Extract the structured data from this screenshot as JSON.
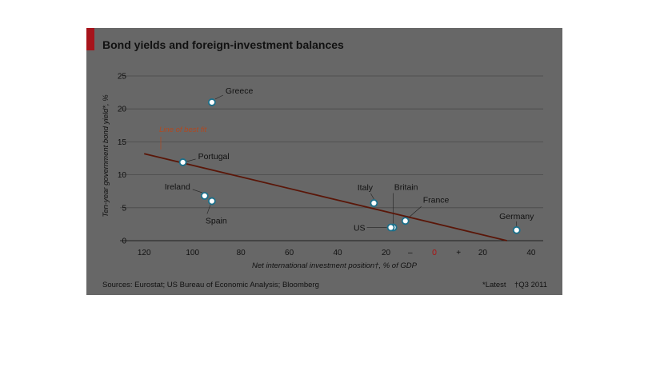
{
  "chart": {
    "title": "Bond yields and foreign-investment balances",
    "sources": "Sources: Eurostat; US Bureau of Economic Analysis; Bloomberg",
    "footnote_latest": "*Latest",
    "footnote_q3": "†Q3 2011",
    "fit_label": "Line of best fit",
    "sign_minus": "–",
    "sign_zero": "0",
    "sign_plus": "+"
  },
  "chart_data": {
    "type": "scatter",
    "title": "Bond yields and foreign-investment balances",
    "xlabel": "Net international investment position†, % of GDP",
    "ylabel": "Ten-year government bond yield*, %",
    "x_direction": "reversed",
    "xlim": [
      -130,
      45
    ],
    "ylim": [
      0,
      25
    ],
    "x_ticks": [
      -120,
      -100,
      -80,
      -60,
      -40,
      -20,
      0,
      20,
      40
    ],
    "x_tick_labels": [
      "120",
      "100",
      "80",
      "60",
      "40",
      "20",
      "0",
      "20",
      "40"
    ],
    "y_ticks": [
      0,
      5,
      10,
      15,
      20,
      25
    ],
    "grid": true,
    "points": [
      {
        "label": "Greece",
        "x": -92,
        "y": 21
      },
      {
        "label": "Portugal",
        "x": -104,
        "y": 11.9
      },
      {
        "label": "Ireland",
        "x": -95,
        "y": 6.8
      },
      {
        "label": "Spain",
        "x": -92,
        "y": 6
      },
      {
        "label": "Italy",
        "x": -25,
        "y": 5.7
      },
      {
        "label": "Britain",
        "x": -17,
        "y": 2
      },
      {
        "label": "US",
        "x": -18,
        "y": 2
      },
      {
        "label": "France",
        "x": -12,
        "y": 3
      },
      {
        "label": "Germany",
        "x": 34,
        "y": 1.6
      }
    ],
    "fit_line": {
      "label": "Line of best fit",
      "x": [
        -120,
        30
      ],
      "y": [
        13.2,
        0
      ]
    },
    "colors": {
      "point": "#1b6f8a",
      "fit_line": "#5a1608",
      "fit_label": "#b3481f"
    }
  }
}
